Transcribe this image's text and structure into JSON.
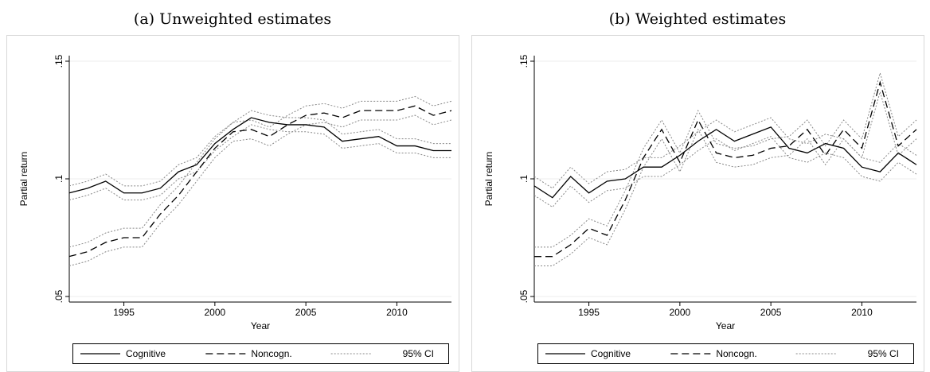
{
  "chart_data": [
    {
      "type": "line",
      "title": "(a) Unweighted estimates",
      "xlabel": "Year",
      "ylabel": "Partial return",
      "x": [
        1992,
        1993,
        1994,
        1995,
        1996,
        1997,
        1998,
        1999,
        2000,
        2001,
        2002,
        2003,
        2004,
        2005,
        2006,
        2007,
        2008,
        2009,
        2010,
        2011,
        2012,
        2013
      ],
      "xlim": [
        1992,
        2013
      ],
      "xticks": [
        1995,
        2000,
        2005,
        2010
      ],
      "ylim": [
        0.05,
        0.15
      ],
      "yticks": [
        {
          "value": 0.05,
          "label": ".05"
        },
        {
          "value": 0.1,
          "label": ".1"
        },
        {
          "value": 0.15,
          "label": ".15"
        }
      ],
      "grid": true,
      "ci_label": "95% CI",
      "ci_color": "#888888",
      "series": [
        {
          "name": "Cognitive",
          "color": "#000000",
          "dash": "solid",
          "values": [
            0.094,
            0.096,
            0.099,
            0.094,
            0.094,
            0.096,
            0.103,
            0.106,
            0.115,
            0.121,
            0.126,
            0.124,
            0.123,
            0.123,
            0.122,
            0.116,
            0.117,
            0.118,
            0.114,
            0.114,
            0.112,
            0.112
          ],
          "ci_lower": [
            0.091,
            0.093,
            0.096,
            0.091,
            0.091,
            0.093,
            0.1,
            0.103,
            0.112,
            0.118,
            0.123,
            0.121,
            0.12,
            0.12,
            0.119,
            0.113,
            0.114,
            0.115,
            0.111,
            0.111,
            0.109,
            0.109
          ],
          "ci_upper": [
            0.097,
            0.099,
            0.102,
            0.097,
            0.097,
            0.099,
            0.106,
            0.109,
            0.118,
            0.124,
            0.129,
            0.127,
            0.126,
            0.126,
            0.125,
            0.119,
            0.12,
            0.121,
            0.117,
            0.117,
            0.115,
            0.115
          ]
        },
        {
          "name": "Noncogn.",
          "color": "#000000",
          "dash": "dashed",
          "values": [
            0.067,
            0.069,
            0.073,
            0.075,
            0.075,
            0.085,
            0.093,
            0.103,
            0.113,
            0.12,
            0.121,
            0.118,
            0.123,
            0.127,
            0.128,
            0.126,
            0.129,
            0.129,
            0.129,
            0.131,
            0.127,
            0.129
          ],
          "ci_lower": [
            0.063,
            0.065,
            0.069,
            0.071,
            0.071,
            0.081,
            0.089,
            0.099,
            0.109,
            0.116,
            0.117,
            0.114,
            0.119,
            0.123,
            0.124,
            0.122,
            0.125,
            0.125,
            0.125,
            0.127,
            0.123,
            0.125
          ],
          "ci_upper": [
            0.071,
            0.073,
            0.077,
            0.079,
            0.079,
            0.089,
            0.097,
            0.107,
            0.117,
            0.124,
            0.125,
            0.122,
            0.127,
            0.131,
            0.132,
            0.13,
            0.133,
            0.133,
            0.133,
            0.135,
            0.131,
            0.133
          ]
        }
      ]
    },
    {
      "type": "line",
      "title": "(b) Weighted estimates",
      "xlabel": "Year",
      "ylabel": "Partial return",
      "x": [
        1992,
        1993,
        1994,
        1995,
        1996,
        1997,
        1998,
        1999,
        2000,
        2001,
        2002,
        2003,
        2004,
        2005,
        2006,
        2007,
        2008,
        2009,
        2010,
        2011,
        2012,
        2013
      ],
      "xlim": [
        1992,
        2013
      ],
      "xticks": [
        1995,
        2000,
        2005,
        2010
      ],
      "ylim": [
        0.05,
        0.15
      ],
      "yticks": [
        {
          "value": 0.05,
          "label": ".05"
        },
        {
          "value": 0.1,
          "label": ".1"
        },
        {
          "value": 0.15,
          "label": ".15"
        }
      ],
      "grid": true,
      "ci_label": "95% CI",
      "ci_color": "#888888",
      "series": [
        {
          "name": "Cognitive",
          "color": "#000000",
          "dash": "solid",
          "values": [
            0.097,
            0.092,
            0.101,
            0.094,
            0.099,
            0.1,
            0.105,
            0.105,
            0.11,
            0.116,
            0.121,
            0.116,
            0.119,
            0.122,
            0.113,
            0.111,
            0.115,
            0.113,
            0.105,
            0.103,
            0.111,
            0.106
          ],
          "ci_lower": [
            0.093,
            0.088,
            0.097,
            0.09,
            0.095,
            0.096,
            0.101,
            0.101,
            0.106,
            0.112,
            0.117,
            0.112,
            0.115,
            0.118,
            0.109,
            0.107,
            0.111,
            0.109,
            0.101,
            0.099,
            0.107,
            0.102
          ],
          "ci_upper": [
            0.101,
            0.096,
            0.105,
            0.098,
            0.103,
            0.104,
            0.109,
            0.109,
            0.114,
            0.12,
            0.125,
            0.12,
            0.123,
            0.126,
            0.117,
            0.115,
            0.119,
            0.117,
            0.109,
            0.107,
            0.115,
            0.11
          ]
        },
        {
          "name": "Noncogn.",
          "color": "#000000",
          "dash": "dashed",
          "values": [
            0.067,
            0.067,
            0.072,
            0.079,
            0.076,
            0.091,
            0.109,
            0.121,
            0.107,
            0.125,
            0.111,
            0.109,
            0.11,
            0.113,
            0.114,
            0.121,
            0.11,
            0.121,
            0.113,
            0.141,
            0.114,
            0.121
          ],
          "ci_lower": [
            0.063,
            0.063,
            0.068,
            0.075,
            0.072,
            0.087,
            0.105,
            0.117,
            0.103,
            0.121,
            0.107,
            0.105,
            0.106,
            0.109,
            0.11,
            0.117,
            0.106,
            0.117,
            0.109,
            0.137,
            0.11,
            0.117
          ],
          "ci_upper": [
            0.071,
            0.071,
            0.076,
            0.083,
            0.08,
            0.095,
            0.113,
            0.125,
            0.111,
            0.129,
            0.115,
            0.113,
            0.114,
            0.117,
            0.118,
            0.125,
            0.114,
            0.125,
            0.117,
            0.145,
            0.118,
            0.125
          ]
        }
      ]
    }
  ]
}
